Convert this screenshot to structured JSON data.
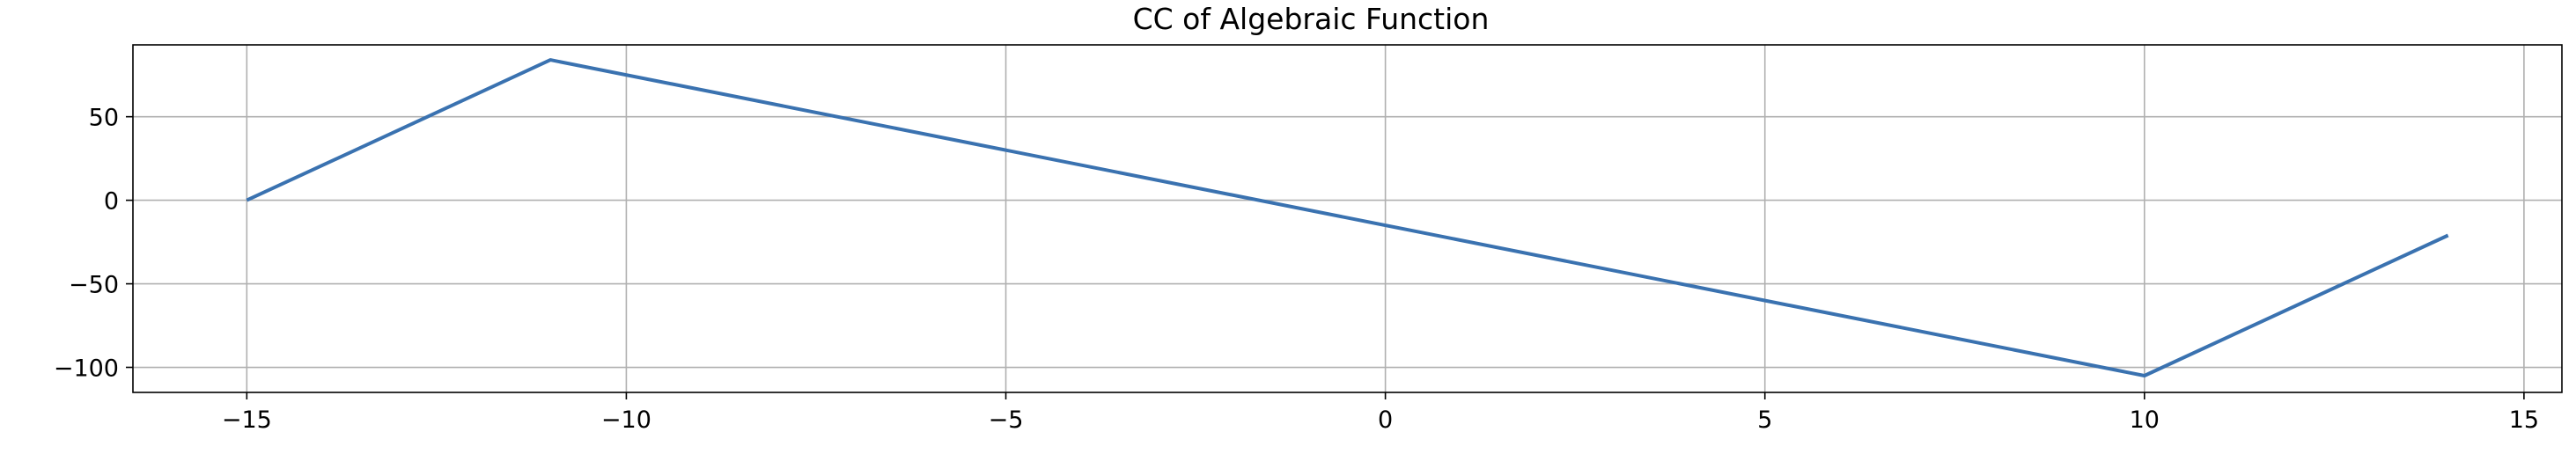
{
  "chart_data": {
    "type": "line",
    "title": "CC of Algebraic Function",
    "xlabel": "",
    "ylabel": "",
    "xlim": [
      -16.5,
      15.5
    ],
    "ylim": [
      -115,
      93
    ],
    "grid": true,
    "x_ticks": [
      -15,
      -10,
      -5,
      0,
      5,
      10,
      15
    ],
    "x_tick_labels": [
      "−15",
      "−10",
      "−5",
      "0",
      "5",
      "10",
      "15"
    ],
    "y_ticks": [
      50,
      0,
      -50,
      -100
    ],
    "y_tick_labels": [
      "50",
      "0",
      "−50",
      "−100"
    ],
    "series": [
      {
        "color": "#3a72b0",
        "x": [
          -15,
          -11,
          10,
          14
        ],
        "y": [
          0,
          84,
          -105,
          -21
        ]
      }
    ]
  }
}
